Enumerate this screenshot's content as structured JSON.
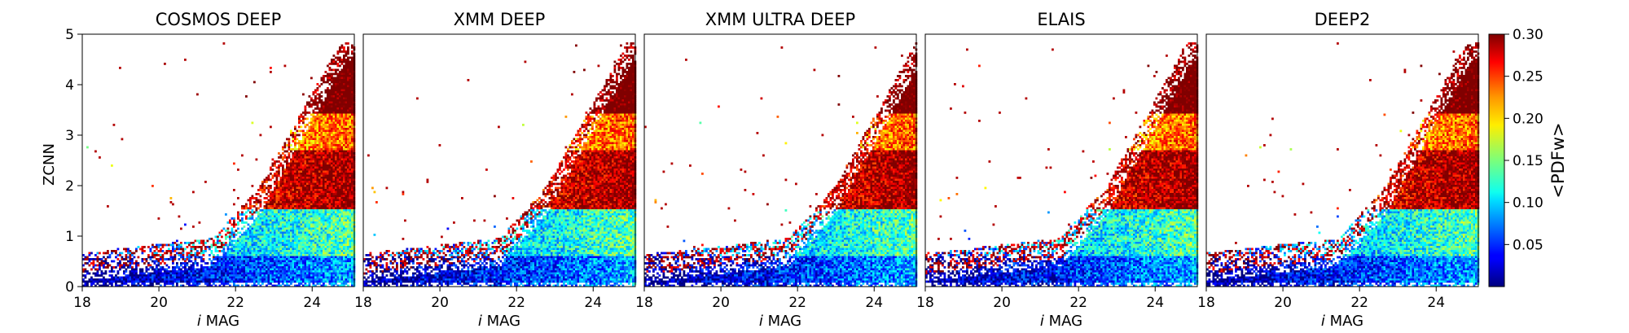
{
  "chart_data": {
    "type": "heatmap",
    "colorbar": {
      "label": "<PDFw>",
      "range": [
        0.0,
        0.3
      ],
      "ticks": [
        0.05,
        0.1,
        0.15,
        0.2,
        0.25,
        0.3
      ],
      "tick_labels": [
        "0.05",
        "0.10",
        "0.15",
        "0.20",
        "0.25",
        "0.30"
      ],
      "colormap": "jet"
    },
    "ylabel": "ZCNN",
    "ylim": [
      0,
      5
    ],
    "y_ticks": [
      0,
      1,
      2,
      3,
      4,
      5
    ],
    "y_tick_labels": [
      "0",
      "1",
      "2",
      "3",
      "4",
      "5"
    ],
    "xlabel_italic": "i",
    "xlabel_rest": " MAG",
    "xlim": [
      18,
      25.1
    ],
    "x_ticks": [
      18,
      20,
      22,
      24
    ],
    "x_tick_labels": [
      "18",
      "20",
      "22",
      "24"
    ],
    "panels": [
      {
        "title": "COSMOS DEEP",
        "seed": 11,
        "shift": 0.0
      },
      {
        "title": "XMM DEEP",
        "seed": 23,
        "shift": 0.15
      },
      {
        "title": "XMM ULTRA DEEP",
        "seed": 37,
        "shift": 0.35
      },
      {
        "title": "ELAIS",
        "seed": 41,
        "shift": 0.1
      },
      {
        "title": "DEEP2",
        "seed": 53,
        "shift": 0.05
      }
    ],
    "z_bands": [
      {
        "z_range": [
          0.0,
          0.6
        ],
        "mean_pdfw": 0.05
      },
      {
        "z_range": [
          0.6,
          1.5
        ],
        "mean_pdfw": 0.1
      },
      {
        "z_range": [
          1.5,
          2.7
        ],
        "mean_pdfw": 0.26
      },
      {
        "z_range": [
          2.7,
          3.4
        ],
        "mean_pdfw": 0.2
      },
      {
        "z_range": [
          3.4,
          4.8
        ],
        "mean_pdfw": 0.29
      }
    ]
  }
}
